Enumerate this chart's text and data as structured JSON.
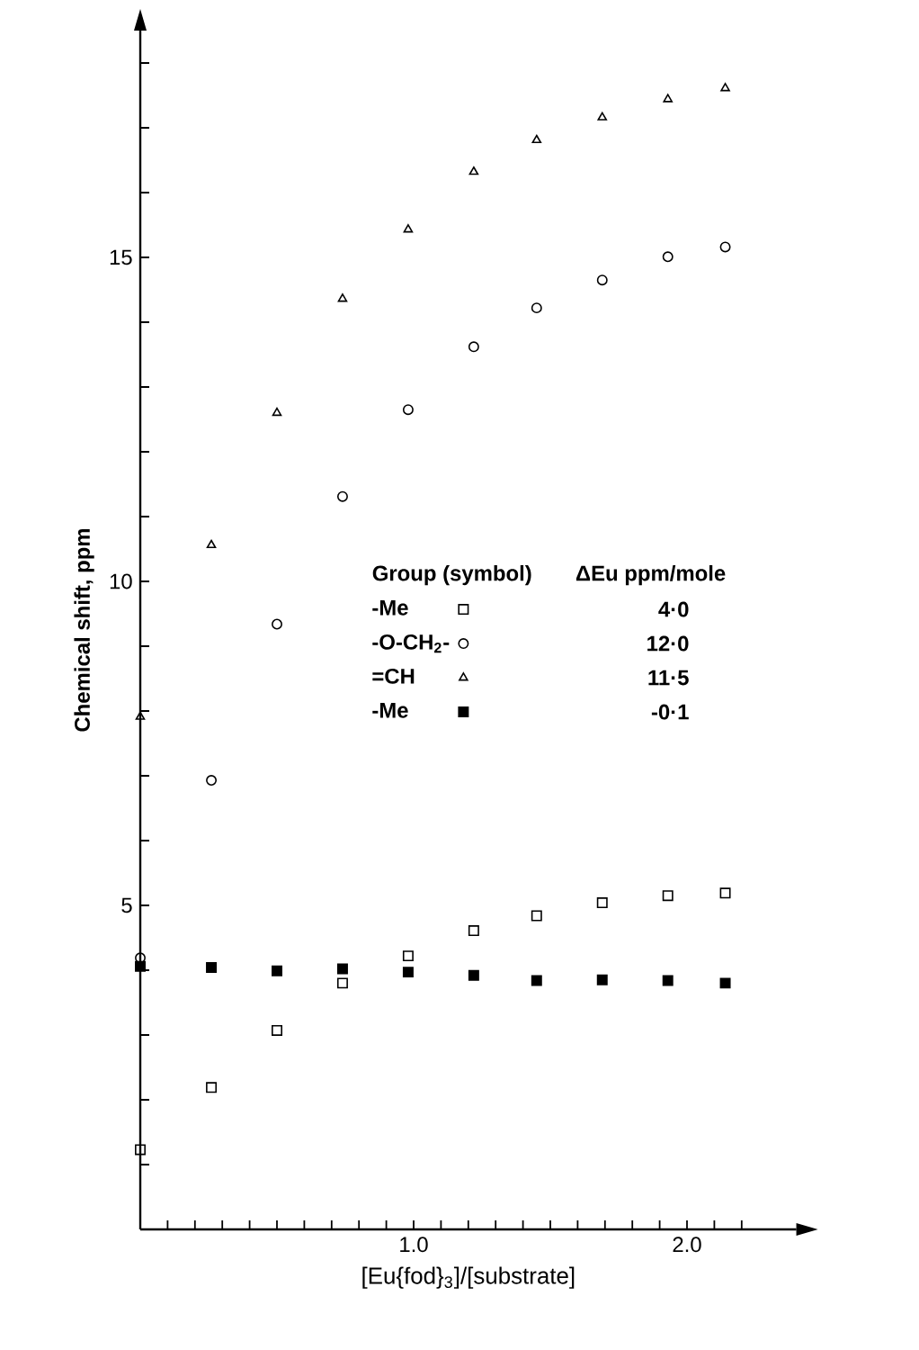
{
  "chart_data": {
    "type": "scatter",
    "xlabel": "[Eu{fod}$_{3}$]/[substrate]",
    "ylabel": "Chemical shift,   ppm",
    "legend_title": "Group (symbol)",
    "legend": "center",
    "x": [
      0,
      0.26,
      0.5,
      0.74,
      0.98,
      1.22,
      1.45,
      1.69,
      1.93,
      2.14
    ],
    "series": [
      {
        "name": "-Me",
        "color": "#000000",
        "marker": "square",
        "values": [
          1.23,
          2.19,
          3.07,
          3.8,
          4.22,
          4.61,
          4.84,
          5.04,
          5.15,
          5.19
        ]
      },
      {
        "name": "-O-CH$_{2}$-",
        "color": "#000000",
        "marker": "circle",
        "values": [
          4.19,
          6.93,
          9.34,
          11.31,
          12.65,
          13.62,
          14.22,
          14.65,
          15.01,
          15.16
        ]
      },
      {
        "name": "=CH",
        "color": "#000000",
        "marker": "triangle",
        "values": [
          7.91,
          10.56,
          12.6,
          14.36,
          15.43,
          16.32,
          16.81,
          17.16,
          17.44,
          17.61
        ]
      },
      {
        "name": "-Me",
        "color": "#000000",
        "marker": "square",
        "values": [
          4.06,
          4.04,
          3.99,
          4.02,
          3.97,
          3.92,
          3.84,
          3.85,
          3.84,
          3.8
        ]
      }
    ],
    "annotations": [
      "ΔEu ppm/mole",
      "4·0",
      "12·0",
      "11·5",
      "-0·1"
    ],
    "xlim": [
      0,
      2.4
    ],
    "ylim": [
      0,
      18.5
    ],
    "xticks": [
      {
        "value": 0.1,
        "label": null
      },
      {
        "value": 0.2,
        "label": null
      },
      {
        "value": 0.3,
        "label": null
      },
      {
        "value": 0.4,
        "label": null
      },
      {
        "value": 0.5,
        "label": null
      },
      {
        "value": 0.6,
        "label": null
      },
      {
        "value": 0.7,
        "label": null
      },
      {
        "value": 0.8,
        "label": null
      },
      {
        "value": 0.9,
        "label": null
      },
      {
        "value": 1.0,
        "label": "1.0"
      },
      {
        "value": 1.1,
        "label": null
      },
      {
        "value": 1.2,
        "label": null
      },
      {
        "value": 1.3,
        "label": null
      },
      {
        "value": 1.4,
        "label": null
      },
      {
        "value": 1.5,
        "label": null
      },
      {
        "value": 1.6,
        "label": null
      },
      {
        "value": 1.7,
        "label": null
      },
      {
        "value": 1.8,
        "label": null
      },
      {
        "value": 1.9,
        "label": null
      },
      {
        "value": 2.0,
        "label": "2.0"
      },
      {
        "value": 2.1,
        "label": null
      },
      {
        "value": 2.2,
        "label": null
      }
    ],
    "yticks": [
      {
        "value": 1,
        "label": null
      },
      {
        "value": 2,
        "label": null
      },
      {
        "value": 3,
        "label": null
      },
      {
        "value": 4,
        "label": null
      },
      5,
      {
        "value": 6,
        "label": null
      },
      {
        "value": 7,
        "label": null
      },
      {
        "value": 8,
        "label": null
      },
      {
        "value": 9,
        "label": null
      },
      10,
      {
        "value": 11,
        "label": null
      },
      {
        "value": 12,
        "label": null
      },
      {
        "value": 13,
        "label": null
      },
      {
        "value": 14,
        "label": null
      },
      15,
      {
        "value": 16,
        "label": null
      },
      {
        "value": 17,
        "label": null
      },
      {
        "value": 18,
        "label": null
      }
    ]
  }
}
